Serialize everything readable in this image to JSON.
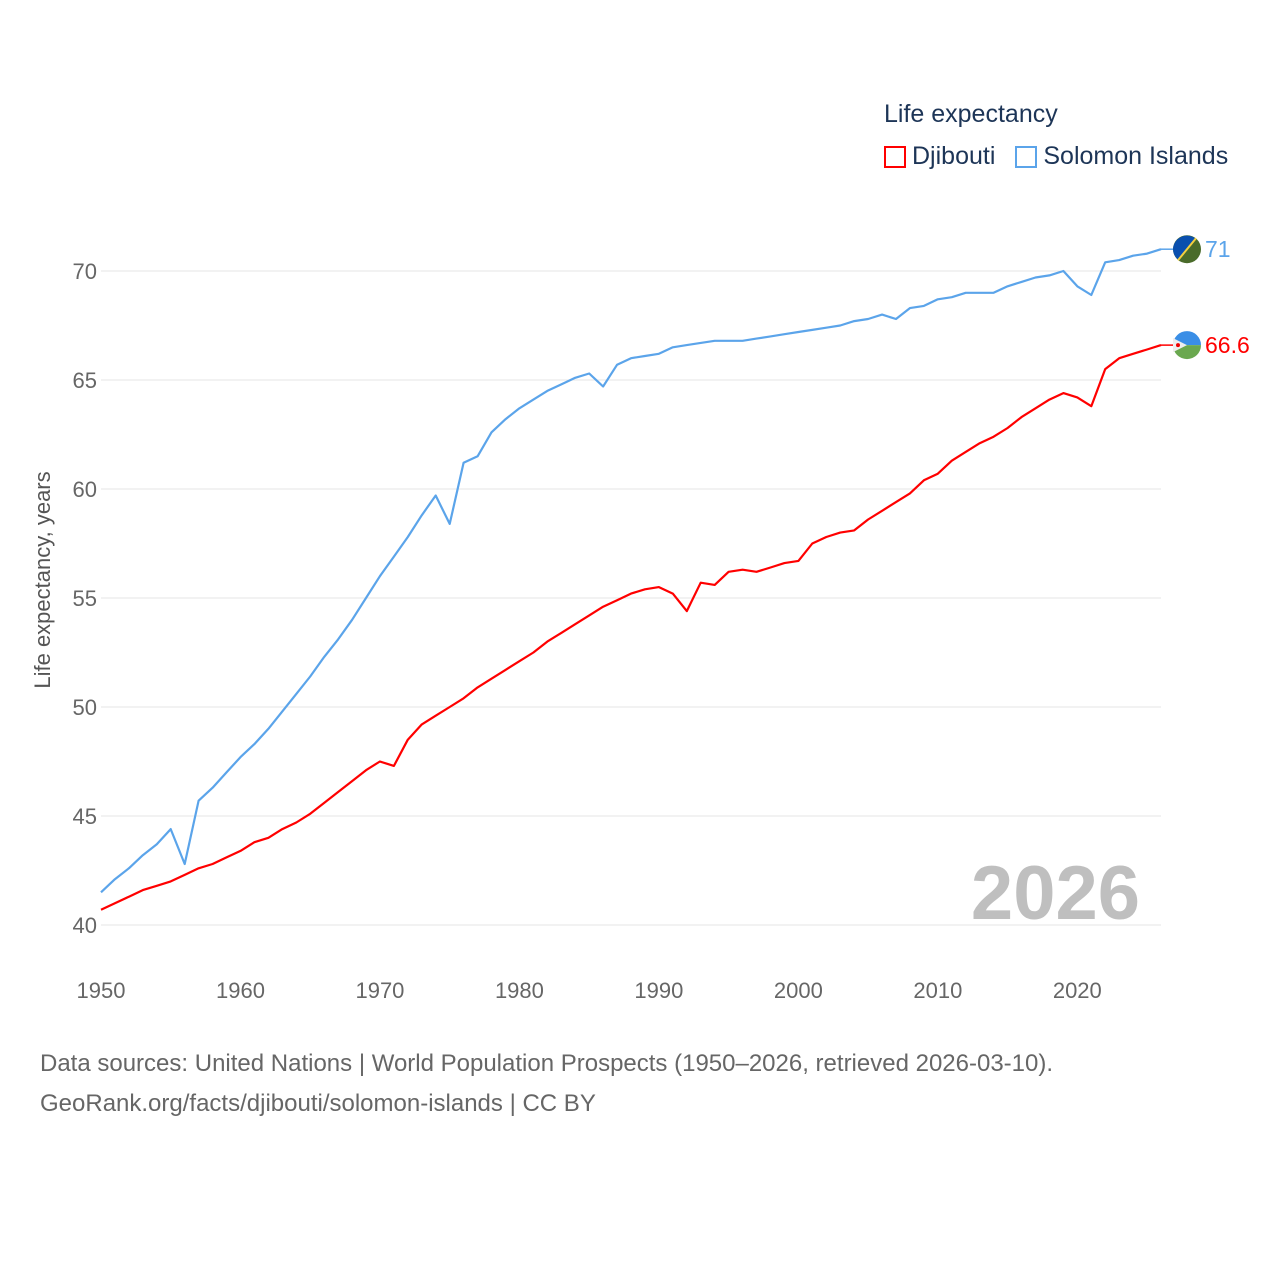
{
  "chart_data": {
    "type": "line",
    "legend_title": "Life expectancy",
    "ylabel": "Life expectancy, years",
    "xlabel": "",
    "ylim": [
      40,
      71.5
    ],
    "xlim": [
      1950,
      2026
    ],
    "yticks": [
      "40",
      "45",
      "50",
      "55",
      "60",
      "65",
      "70"
    ],
    "xticks": [
      "1950",
      "1960",
      "1970",
      "1980",
      "1990",
      "2000",
      "2010",
      "2020"
    ],
    "grid": true,
    "legend_placement": "top-right",
    "current_year": "2026",
    "x": [
      1950,
      1951,
      1952,
      1953,
      1954,
      1955,
      1956,
      1957,
      1958,
      1959,
      1960,
      1961,
      1962,
      1963,
      1964,
      1965,
      1966,
      1967,
      1968,
      1969,
      1970,
      1971,
      1972,
      1973,
      1974,
      1975,
      1976,
      1977,
      1978,
      1979,
      1980,
      1981,
      1982,
      1983,
      1984,
      1985,
      1986,
      1987,
      1988,
      1989,
      1990,
      1991,
      1992,
      1993,
      1994,
      1995,
      1996,
      1997,
      1998,
      1999,
      2000,
      2001,
      2002,
      2003,
      2004,
      2005,
      2006,
      2007,
      2008,
      2009,
      2010,
      2011,
      2012,
      2013,
      2014,
      2015,
      2016,
      2017,
      2018,
      2019,
      2020,
      2021,
      2022,
      2023,
      2024,
      2025,
      2026
    ],
    "series": [
      {
        "name": "Djibouti",
        "color": "#ff0000",
        "end_label": "66.6",
        "values": [
          40.7,
          41.0,
          41.3,
          41.6,
          41.8,
          42.0,
          42.3,
          42.6,
          42.8,
          43.1,
          43.4,
          43.8,
          44.0,
          44.4,
          44.7,
          45.1,
          45.6,
          46.1,
          46.6,
          47.1,
          47.5,
          47.3,
          48.5,
          49.2,
          49.6,
          50.0,
          50.4,
          50.9,
          51.3,
          51.7,
          52.1,
          52.5,
          53.0,
          53.4,
          53.8,
          54.2,
          54.6,
          54.9,
          55.2,
          55.4,
          55.5,
          55.2,
          54.4,
          55.7,
          55.6,
          56.2,
          56.3,
          56.2,
          56.4,
          56.6,
          56.7,
          57.5,
          57.8,
          58.0,
          58.1,
          58.6,
          59.0,
          59.4,
          59.8,
          60.4,
          60.7,
          61.3,
          61.7,
          62.1,
          62.4,
          62.8,
          63.3,
          63.7,
          64.1,
          64.4,
          64.2,
          63.8,
          65.5,
          66.0,
          66.2,
          66.4,
          66.6
        ]
      },
      {
        "name": "Solomon Islands",
        "color": "#5ba4ea",
        "end_label": "71",
        "values": [
          41.5,
          42.1,
          42.6,
          43.2,
          43.7,
          44.4,
          42.8,
          45.7,
          46.3,
          47.0,
          47.7,
          48.3,
          49.0,
          49.8,
          50.6,
          51.4,
          52.3,
          53.1,
          54.0,
          55.0,
          56.0,
          56.9,
          57.8,
          58.8,
          59.7,
          58.4,
          61.2,
          61.5,
          62.6,
          63.2,
          63.7,
          64.1,
          64.5,
          64.8,
          65.1,
          65.3,
          64.7,
          65.7,
          66.0,
          66.1,
          66.2,
          66.5,
          66.6,
          66.7,
          66.8,
          66.8,
          66.8,
          66.9,
          67.0,
          67.1,
          67.2,
          67.3,
          67.4,
          67.5,
          67.7,
          67.8,
          68.0,
          67.8,
          68.3,
          68.4,
          68.7,
          68.8,
          69.0,
          69.0,
          69.0,
          69.3,
          69.5,
          69.7,
          69.8,
          70.0,
          69.3,
          68.9,
          70.4,
          70.5,
          70.7,
          70.8,
          71.0
        ]
      }
    ]
  },
  "footer": {
    "line1": "Data sources: United Nations | World Population Prospects (1950–2026, retrieved 2026-03-10).",
    "line2": "GeoRank.org/facts/djibouti/solomon-islands | CC BY"
  }
}
